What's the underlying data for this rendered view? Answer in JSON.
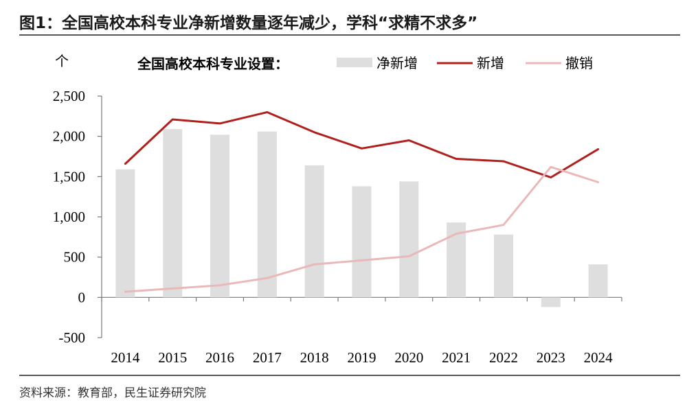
{
  "header": {
    "title": "图1：全国高校本科专业净新增数量逐年减少，学科“求精不求多”"
  },
  "footer": {
    "source": "资料来源：教育部，民生证券研究院"
  },
  "colors": {
    "net": "#dedede",
    "add": "#b0201c",
    "cancel": "#eab8b8",
    "axis": "#777777"
  },
  "chart_data": {
    "type": "bar",
    "unit_label": "个",
    "legend_title": "全国高校本科专业设置：",
    "categories": [
      "2014",
      "2015",
      "2016",
      "2017",
      "2018",
      "2019",
      "2020",
      "2021",
      "2022",
      "2023",
      "2024"
    ],
    "ylim": [
      -500,
      2500
    ],
    "yticks": [
      -500,
      0,
      500,
      1000,
      1500,
      2000,
      2500
    ],
    "ytick_labels": [
      "-500",
      "0",
      "500",
      "1,000",
      "1,500",
      "2,000",
      "2,500"
    ],
    "series": [
      {
        "name": "净新增",
        "type": "bar",
        "color": "#dedede",
        "values": [
          1590,
          2090,
          2020,
          2060,
          1640,
          1380,
          1440,
          930,
          780,
          -120,
          410
        ]
      },
      {
        "name": "新增",
        "type": "line",
        "color": "#b0201c",
        "values": [
          1660,
          2210,
          2160,
          2300,
          2050,
          1850,
          1950,
          1720,
          1690,
          1490,
          1840
        ]
      },
      {
        "name": "撤销",
        "type": "line",
        "color": "#eab8b8",
        "values": [
          70,
          110,
          150,
          240,
          410,
          460,
          510,
          790,
          900,
          1620,
          1430
        ]
      }
    ]
  }
}
